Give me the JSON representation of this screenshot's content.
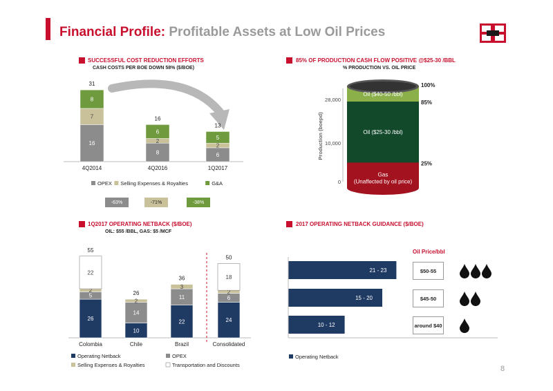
{
  "header": {
    "title_main": "Financial Profile:",
    "title_sub": "Profitable Assets at Low Oil Prices",
    "page_number": "8"
  },
  "colors": {
    "accent_red": "#c8102e",
    "opex_gray": "#8c8c8c",
    "selling_tan": "#c9c19a",
    "ga_green": "#6f9a3d",
    "netback_navy": "#1f3a63",
    "barrel_dark_green": "#12492a",
    "barrel_light_green": "#8bb04a",
    "barrel_red": "#a3121f"
  },
  "logo": {
    "icon": "company-logo-icon"
  },
  "sections": {
    "cost": {
      "title": "SUCCESSFUL COST REDUCTION EFFORTS",
      "subtitle": "CASH COSTS PER BOE DOWN 58% ($/BOE)"
    },
    "production": {
      "title": "85% OF PRODUCTION CASH FLOW POSITIVE @$25-30 /BBL",
      "subtitle": "% PRODUCTION VS. OIL PRICE"
    },
    "netback": {
      "title": "1Q2017 OPERATING NETBACK ($/BOE)",
      "subtitle": "OIL: $55 /BBL, GAS: $5 /MCF"
    },
    "guidance": {
      "title": "2017 OPERATING NETBACK GUIDANCE ($/BOE)"
    }
  },
  "chart_data": [
    {
      "id": "cost_reduction",
      "type": "bar",
      "stacked": true,
      "categories": [
        "4Q2014",
        "4Q2016",
        "1Q2017"
      ],
      "series": [
        {
          "name": "OPEX",
          "values": [
            16,
            8,
            6
          ],
          "color": "#8c8c8c"
        },
        {
          "name": "Selling Expenses & Royalties",
          "values": [
            7,
            2,
            2
          ],
          "color": "#c9c19a"
        },
        {
          "name": "G&A",
          "values": [
            8,
            6,
            5
          ],
          "color": "#6f9a3d"
        }
      ],
      "totals": [
        31,
        16,
        13
      ],
      "legend_position": "bottom",
      "reductions": [
        {
          "label": "-63%",
          "color": "#8c8c8c"
        },
        {
          "label": "-71%",
          "color": "#c9c19a"
        },
        {
          "label": "-38%",
          "color": "#6f9a3d"
        }
      ]
    },
    {
      "id": "production_barrel",
      "type": "area",
      "ylabel": "Production (boepd)",
      "ylim": [
        0,
        28000
      ],
      "y_ticks": [
        "28,000",
        "10,000",
        "0"
      ],
      "layers": [
        {
          "name": "Gas\n(Unaffected by oil price)",
          "line1": "Gas",
          "line2": "(Unaffected by oil price)",
          "upper_pct": "25%",
          "color": "#a3121f"
        },
        {
          "name": "Oil ($25-30 /bbl)",
          "upper_pct": "85%",
          "color": "#12492a"
        },
        {
          "name": "Oil ($40-50 /bbl)",
          "upper_pct": "100%",
          "color": "#8bb04a"
        }
      ]
    },
    {
      "id": "operating_netback",
      "type": "bar",
      "stacked": true,
      "categories": [
        "Colombia",
        "Chile",
        "Brazil",
        "Consolidated"
      ],
      "series": [
        {
          "name": "Operating Netback",
          "values": [
            26,
            10,
            22,
            24
          ],
          "color": "#1f3a63"
        },
        {
          "name": "OPEX",
          "values": [
            5,
            14,
            11,
            6
          ],
          "color": "#8c8c8c"
        },
        {
          "name": "Selling Expenses & Royalties",
          "values": [
            2,
            2,
            3,
            2
          ],
          "color": "#c9c19a"
        },
        {
          "name": "Transportation and Discounts",
          "values": [
            22,
            0,
            0,
            18
          ],
          "color": "#ffffff"
        }
      ],
      "totals": [
        55,
        26,
        36,
        50
      ],
      "legend_position": "bottom"
    },
    {
      "id": "netback_guidance",
      "type": "bar",
      "orientation": "horizontal",
      "price_header": "Oil Price/bbl",
      "series_name": "Operating Netback",
      "bars": [
        {
          "label": "21 - 23",
          "low": 21,
          "high": 23,
          "price": "$50-55",
          "drops": 3
        },
        {
          "label": "15 - 20",
          "low": 15,
          "high": 20,
          "price": "$45-50",
          "drops": 2
        },
        {
          "label": "10 - 12",
          "low": 10,
          "high": 12,
          "price": "around $40",
          "drops": 1
        }
      ],
      "legend_position": "bottom"
    }
  ]
}
